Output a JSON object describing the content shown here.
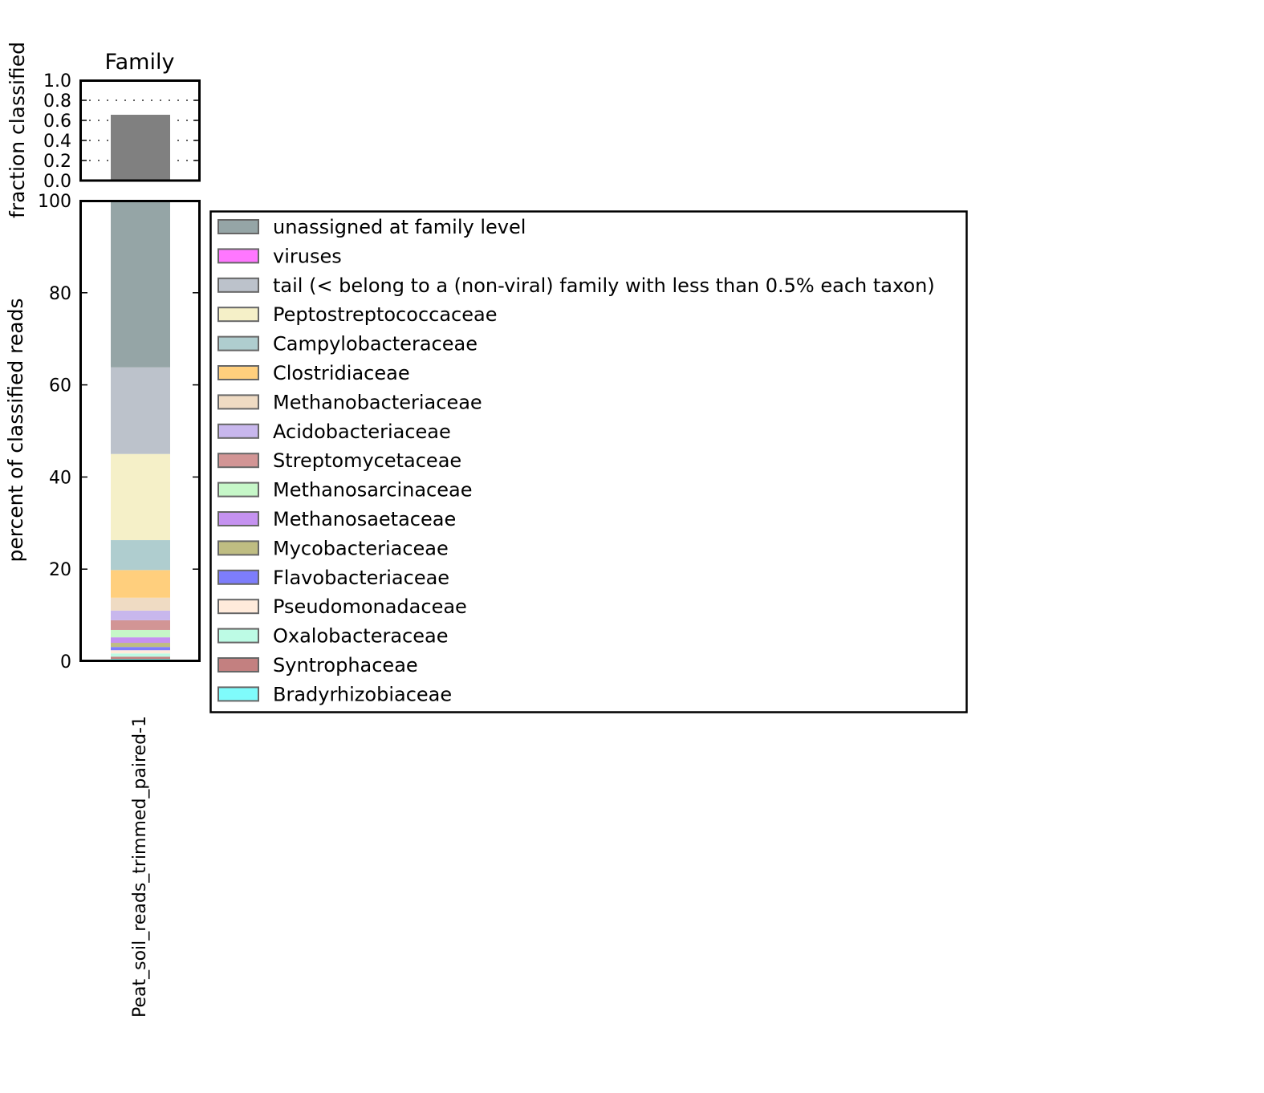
{
  "chart_data": [
    {
      "type": "bar",
      "title": "Family",
      "xlabel": "",
      "ylabel": "fraction classified",
      "ylim": [
        0.0,
        1.0
      ],
      "yticks": [
        "0.0",
        "0.2",
        "0.4",
        "0.6",
        "0.8",
        "1.0"
      ],
      "grid": "dotted horizontal at 0.2 intervals",
      "categories": [
        "Peat_soil_reads_trimmed_paired-1"
      ],
      "values": [
        0.656
      ],
      "bar_color": "#808080"
    },
    {
      "type": "bar",
      "stacked": true,
      "xlabel": "",
      "ylabel": "percent of classified reads",
      "ylim": [
        0,
        100
      ],
      "yticks": [
        "0",
        "20",
        "40",
        "60",
        "80",
        "100"
      ],
      "categories": [
        "Peat_soil_reads_trimmed_paired-1"
      ],
      "legend_position": "right",
      "series": [
        {
          "name": "unassigned at family level",
          "color": "#95a5a6",
          "values": [
            36.2
          ]
        },
        {
          "name": "viruses",
          "color": "#ff77ff",
          "values": [
            0.0
          ]
        },
        {
          "name": "tail (< belong to a (non-viral) family with less than 0.5% each taxon)",
          "color": "#bcc2cb",
          "values": [
            18.8
          ]
        },
        {
          "name": "Peptostreptococcaceae",
          "color": "#f5f0c8",
          "values": [
            18.7
          ]
        },
        {
          "name": "Campylobacteraceae",
          "color": "#afcdcf",
          "values": [
            6.5
          ]
        },
        {
          "name": "Clostridiaceae",
          "color": "#ffcf7d",
          "values": [
            6.0
          ]
        },
        {
          "name": "Methanobacteriaceae",
          "color": "#efdbc3",
          "values": [
            2.8
          ]
        },
        {
          "name": "Acidobacteriaceae",
          "color": "#c8b7ed",
          "values": [
            2.1
          ]
        },
        {
          "name": "Streptomycetaceae",
          "color": "#d29595",
          "values": [
            2.1
          ]
        },
        {
          "name": "Methanosarcinaceae",
          "color": "#c6f7c8",
          "values": [
            1.6
          ]
        },
        {
          "name": "Methanosaetaceae",
          "color": "#c592f0",
          "values": [
            1.2
          ]
        },
        {
          "name": "Mycobacteriaceae",
          "color": "#bfbd82",
          "values": [
            0.9
          ]
        },
        {
          "name": "Flavobacteriaceae",
          "color": "#7d7dfb",
          "values": [
            0.7
          ]
        },
        {
          "name": "Pseudomonadaceae",
          "color": "#ffebdb",
          "values": [
            0.7
          ]
        },
        {
          "name": "Oxalobacteraceae",
          "color": "#bdfbe5",
          "values": [
            0.7
          ]
        },
        {
          "name": "Syntrophaceae",
          "color": "#c38080",
          "values": [
            0.5
          ]
        },
        {
          "name": "Bradyrhizobiaceae",
          "color": "#7ffbfb",
          "values": [
            0.5
          ]
        }
      ]
    }
  ]
}
